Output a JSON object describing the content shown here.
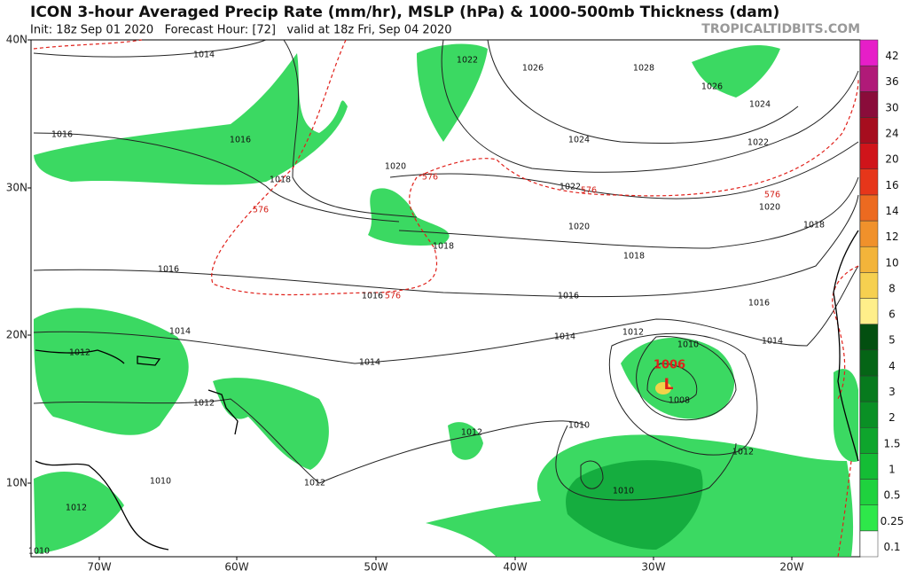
{
  "header": {
    "title": "ICON 3-hour Averaged Precip Rate (mm/hr), MSLP (hPa) & 1000-500mb Thickness (dam)",
    "subtitle": "Init: 18z Sep 01 2020   Forecast Hour: [72]   valid at 18z Fri, Sep 04 2020",
    "site": "TROPICALTIDBITS.COM"
  },
  "map": {
    "lat_labels": [
      "40N",
      "30N",
      "20N",
      "10N"
    ],
    "lon_labels": [
      "70W",
      "60W",
      "50W",
      "40W",
      "30W",
      "20W"
    ],
    "low_marker": "L",
    "low_pressure": "1006",
    "contour_labels": [
      "1014",
      "1022",
      "1026",
      "1028",
      "1026",
      "1024",
      "1016",
      "1016",
      "1024",
      "1022",
      "1020",
      "1018",
      "576",
      "1022",
      "576",
      "576",
      "1020",
      "576",
      "1018",
      "1020",
      "1018",
      "1018",
      "1016",
      "1016",
      "576",
      "1016",
      "1016",
      "1014",
      "1014",
      "1012",
      "1014",
      "1010",
      "1014",
      "1012",
      "1008",
      "1012",
      "1010",
      "1012",
      "1012",
      "1010",
      "1012",
      "1010",
      "1012",
      "1010"
    ]
  },
  "colorbar": {
    "levels": [
      0.1,
      0.25,
      0.5,
      1,
      1.5,
      2,
      3,
      4,
      5,
      6,
      8,
      10,
      12,
      14,
      16,
      20,
      24,
      30,
      36,
      42
    ]
  }
}
